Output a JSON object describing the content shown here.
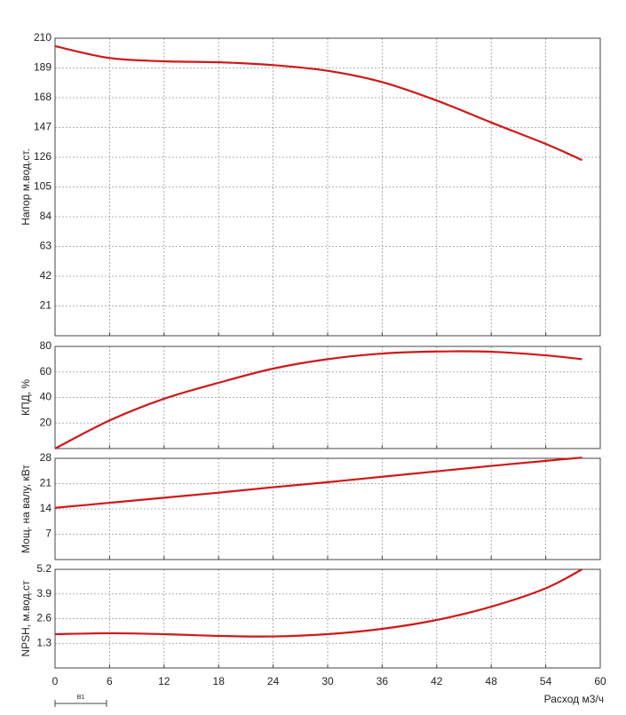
{
  "chart_data": [
    {
      "type": "line",
      "ylabel": "Напор м.вод.ст.",
      "ylim": [
        0,
        210
      ],
      "yticks": [
        21,
        42,
        63,
        84,
        105,
        126,
        147,
        168,
        189,
        210
      ],
      "xlim": [
        0,
        60
      ],
      "xticks": [
        0,
        6,
        12,
        18,
        24,
        30,
        36,
        42,
        48,
        54,
        60
      ],
      "grid": true,
      "x": [
        0,
        6,
        12,
        18,
        24,
        30,
        36,
        42,
        48,
        54,
        58
      ],
      "series": [
        {
          "color": "#d01818",
          "values": [
            204.4,
            196,
            193.7,
            193,
            191,
            187,
            179,
            166,
            150.5,
            135.4,
            124
          ]
        }
      ]
    },
    {
      "type": "line",
      "ylabel": "КПД, %",
      "ylim": [
        0,
        80
      ],
      "yticks": [
        20,
        40,
        60,
        80
      ],
      "xlim": [
        0,
        60
      ],
      "xticks": [
        0,
        6,
        12,
        18,
        24,
        30,
        36,
        42,
        48,
        54,
        60
      ],
      "grid": true,
      "x": [
        0,
        6,
        12,
        18,
        24,
        30,
        36,
        42,
        48,
        54,
        58
      ],
      "series": [
        {
          "color": "#d01818",
          "values": [
            0,
            22,
            39,
            51.5,
            62.6,
            70,
            74.4,
            76,
            75.8,
            73,
            70
          ]
        }
      ]
    },
    {
      "type": "line",
      "ylabel": "Мощ. на валу, кВт",
      "ylim": [
        0,
        28
      ],
      "yticks": [
        7,
        14,
        21,
        28
      ],
      "xlim": [
        0,
        60
      ],
      "xticks": [
        0,
        6,
        12,
        18,
        24,
        30,
        36,
        42,
        48,
        54,
        60
      ],
      "grid": true,
      "x": [
        0,
        6,
        12,
        18,
        24,
        30,
        36,
        42,
        48,
        54,
        58
      ],
      "series": [
        {
          "color": "#d01818",
          "values": [
            14.3,
            15.7,
            17.1,
            18.5,
            20.0,
            21.4,
            22.9,
            24.4,
            25.9,
            27.3,
            28.2
          ]
        }
      ]
    },
    {
      "type": "line",
      "ylabel": "NPSH, м.вод.ст",
      "xlabel": "Расход м3/ч",
      "ylim": [
        0,
        5.2
      ],
      "yticks": [
        1.3,
        2.6,
        3.9,
        5.2
      ],
      "xlim": [
        0,
        60
      ],
      "xticks": [
        0,
        6,
        12,
        18,
        24,
        30,
        36,
        42,
        48,
        54,
        60
      ],
      "grid": true,
      "x": [
        0,
        6,
        12,
        18,
        24,
        30,
        36,
        42,
        48,
        54,
        58
      ],
      "series": [
        {
          "color": "#d01818",
          "values": [
            1.78,
            1.83,
            1.78,
            1.69,
            1.66,
            1.78,
            2.06,
            2.53,
            3.23,
            4.2,
            5.2
          ]
        }
      ]
    }
  ],
  "footer": {
    "marker": "B1"
  }
}
